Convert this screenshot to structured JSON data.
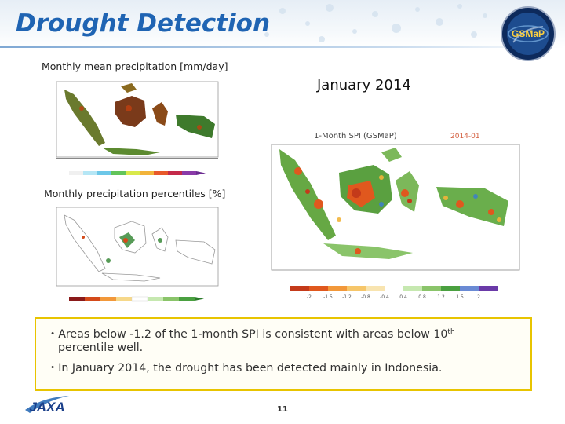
{
  "slide": {
    "title": "Drought Detection",
    "logo_text": "GSMaP",
    "page_number": "11"
  },
  "panels": {
    "mean_label": "Monthly mean precipitation [mm/day]",
    "percentile_label": "Monthly precipitation percentiles [%]",
    "period": "January 2014",
    "spi_title": "1-Month SPI (GSMaP)",
    "spi_date": "2014-01",
    "spi_legend_ticks": [
      "-2",
      "-1.5",
      "-1.2",
      "-0.8",
      "-0.4",
      "0.4",
      "0.8",
      "1.2",
      "1.5",
      "2"
    ]
  },
  "notes": {
    "bullet1_a": "Areas below -1.2 of the 1-month SPI is consistent with areas below 10",
    "bullet1_sup": "th",
    "bullet1_b": "percentile well.",
    "bullet2": "In January 2014, the drought has been detected mainly in Indonesia."
  },
  "footer": {
    "agency": "JAXA"
  },
  "colors": {
    "title": "#1f64b3",
    "box_border": "#e8c400"
  }
}
